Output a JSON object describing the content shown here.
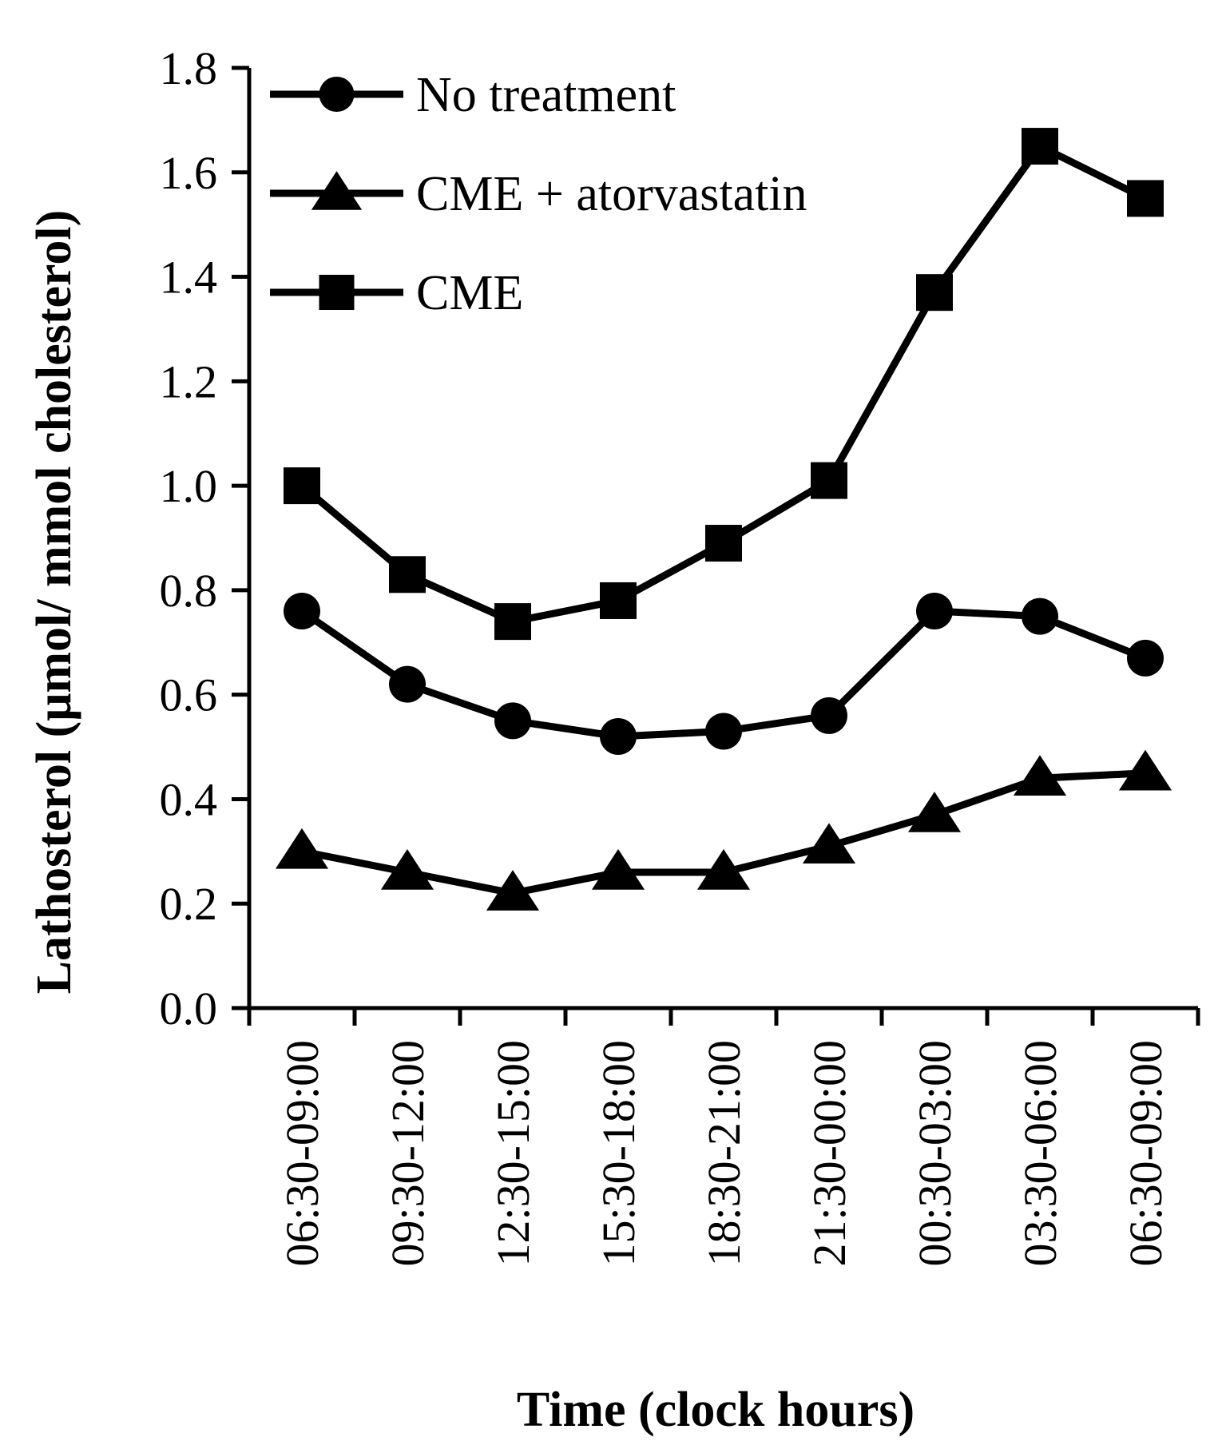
{
  "chart_data": {
    "type": "line",
    "xlabel": "Time (clock hours)",
    "ylabel": "Lathosterol (μmol/ mmol cholesterol)",
    "ylim": [
      0,
      1.8
    ],
    "ytick_step": 0.2,
    "yticks": [
      "0.0",
      "0.2",
      "0.4",
      "0.6",
      "0.8",
      "1.0",
      "1.2",
      "1.4",
      "1.6",
      "1.8"
    ],
    "categories": [
      "06:30-09:00",
      "09:30-12:00",
      "12:30-15:00",
      "15:30-18:00",
      "18:30-21:00",
      "21:30-00:00",
      "00:30-03:00",
      "03:30-06:00",
      "06:30-09:00"
    ],
    "legend_position": "top-left",
    "series": [
      {
        "name": "No treatment",
        "marker": "circle",
        "color": "#000000",
        "values": [
          0.76,
          0.62,
          0.55,
          0.52,
          0.53,
          0.56,
          0.76,
          0.75,
          0.67
        ]
      },
      {
        "name": "CME + atorvastatin",
        "marker": "triangle",
        "color": "#000000",
        "values": [
          0.3,
          0.26,
          0.22,
          0.26,
          0.26,
          0.31,
          0.37,
          0.44,
          0.45
        ]
      },
      {
        "name": "CME",
        "marker": "square",
        "color": "#000000",
        "values": [
          1.0,
          0.83,
          0.74,
          0.78,
          0.89,
          1.01,
          1.37,
          1.65,
          1.55
        ]
      }
    ]
  }
}
